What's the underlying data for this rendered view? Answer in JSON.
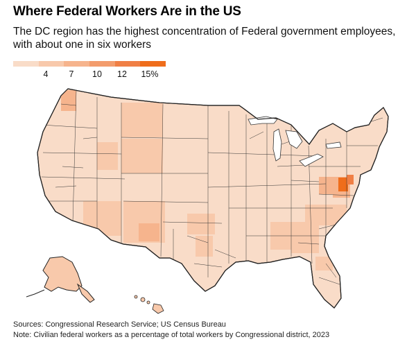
{
  "title": "Where Federal Workers Are in the US",
  "subtitle": "The DC region has the highest concentration of Federal government employees, with about one in six workers",
  "legend": {
    "colors": [
      "#f9dcc8",
      "#f8c9ab",
      "#f6b48d",
      "#f39c6c",
      "#f07f45",
      "#ef6d1b"
    ],
    "ticks": [
      "4",
      "7",
      "10",
      "12",
      "15%"
    ]
  },
  "colors": {
    "lightest": "#f9dcc8",
    "light": "#f8c9ab",
    "medium": "#f6b48d",
    "dark": "#f39c6c",
    "darker": "#f07f45",
    "darkest": "#ef6d1b",
    "border": "#222222"
  },
  "source": "Sources: Congressional Research Service; US Census Bureau",
  "note": "Note: Civilian federal workers as a percentage of total workers by Congressional district, 2023"
}
